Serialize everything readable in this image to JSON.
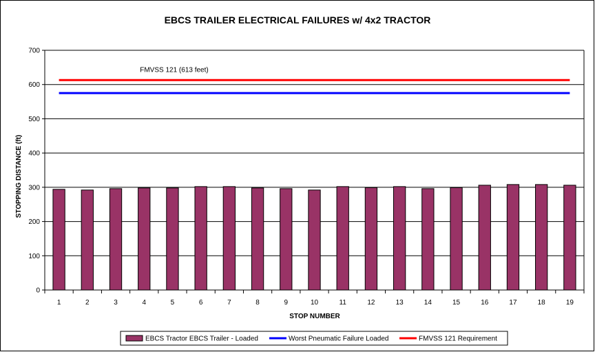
{
  "chart_data": {
    "type": "bar",
    "title": "EBCS TRAILER ELECTRICAL FAILURES w/ 4x2 TRACTOR",
    "xlabel": "STOP NUMBER",
    "ylabel": "STOPPING DISTANCE (ft)",
    "ylim": [
      0,
      700
    ],
    "yticks": [
      0,
      100,
      200,
      300,
      400,
      500,
      600,
      700
    ],
    "grid": true,
    "legend_position": "bottom",
    "categories": [
      "1",
      "2",
      "3",
      "4",
      "5",
      "6",
      "7",
      "8",
      "9",
      "10",
      "11",
      "12",
      "13",
      "14",
      "15",
      "16",
      "17",
      "18",
      "19"
    ],
    "series": [
      {
        "name": "EBCS Tractor EBCS Trailer - Loaded",
        "type": "bar",
        "color": "#993366",
        "values": [
          294,
          292,
          296,
          298,
          298,
          302,
          302,
          298,
          296,
          292,
          302,
          299,
          302,
          296,
          299,
          306,
          308,
          308,
          306
        ]
      },
      {
        "name": "Worst Pneumatic Failure Loaded",
        "type": "line",
        "color": "#0000ff",
        "values": [
          575,
          575,
          575,
          575,
          575,
          575,
          575,
          575,
          575,
          575,
          575,
          575,
          575,
          575,
          575,
          575,
          575,
          575,
          575
        ]
      },
      {
        "name": "FMVSS 121 Requirement",
        "type": "line",
        "color": "#ff0000",
        "values": [
          613,
          613,
          613,
          613,
          613,
          613,
          613,
          613,
          613,
          613,
          613,
          613,
          613,
          613,
          613,
          613,
          613,
          613,
          613
        ]
      }
    ],
    "annotations": [
      {
        "text": "FMVSS 121 (613 feet)",
        "x": "4",
        "y": 613
      }
    ]
  }
}
